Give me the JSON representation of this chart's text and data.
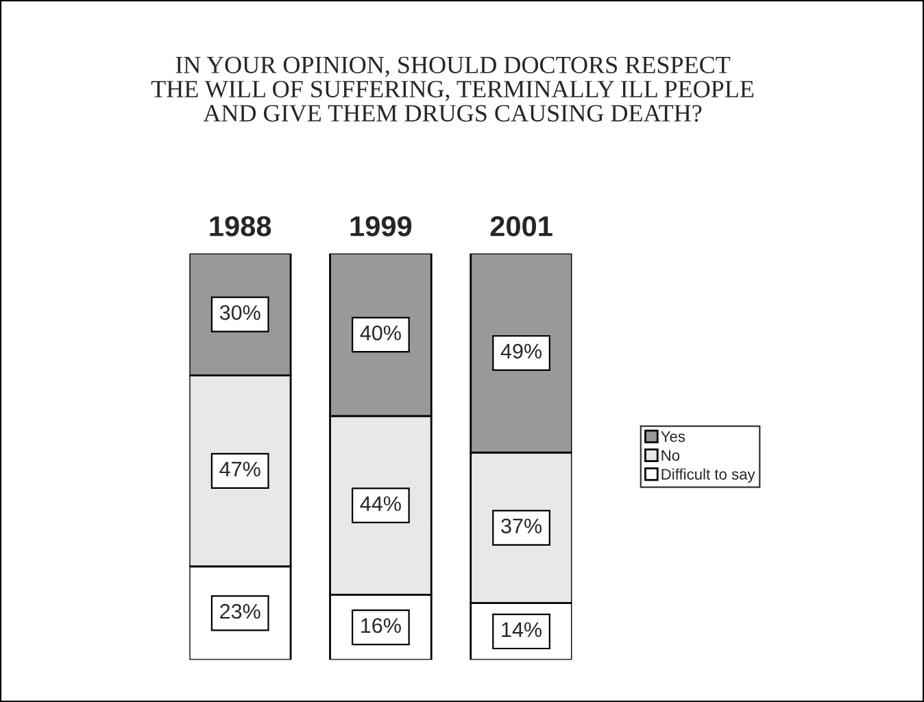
{
  "chart_data": {
    "type": "bar",
    "stacked": true,
    "title": "IN YOUR OPINION, SHOULD DOCTORS RESPECT\nTHE WILL OF SUFFERING, TERMINALLY ILL PEOPLE\nAND GIVE THEM DRUGS CAUSING DEATH?",
    "categories": [
      "1988",
      "1999",
      "2001"
    ],
    "series": [
      {
        "name": "Difficult to say",
        "color": "#ffffff",
        "values": [
          23,
          16,
          14
        ],
        "value_labels": [
          "23%",
          "16%",
          "14%"
        ]
      },
      {
        "name": "No",
        "color": "#e8e8e8",
        "values": [
          47,
          44,
          37
        ],
        "value_labels": [
          "47%",
          "44%",
          "37%"
        ]
      },
      {
        "name": "Yes",
        "color": "#999999",
        "values": [
          30,
          40,
          49
        ],
        "value_labels": [
          "30%",
          "40%",
          "49%"
        ]
      }
    ],
    "ylim": [
      0,
      100
    ],
    "grid": false,
    "legend": "right"
  }
}
